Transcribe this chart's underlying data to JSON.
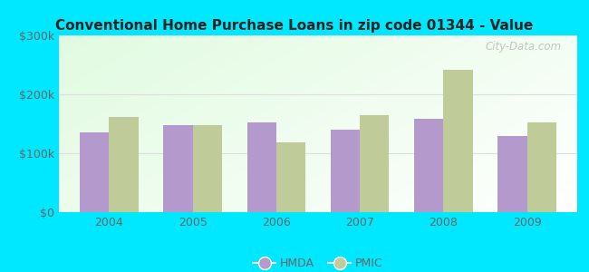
{
  "title": "Conventional Home Purchase Loans in zip code 01344 - Value",
  "years": [
    "2004",
    "2005",
    "2006",
    "2007",
    "2008",
    "2009"
  ],
  "hmda_values": [
    135000,
    148000,
    152000,
    140000,
    158000,
    130000
  ],
  "pmic_values": [
    162000,
    148000,
    118000,
    165000,
    242000,
    152000
  ],
  "hmda_color": "#b399cc",
  "pmic_color": "#bfcc99",
  "ylim": [
    0,
    300000
  ],
  "yticks": [
    0,
    100000,
    200000,
    300000
  ],
  "ytick_labels": [
    "$0",
    "$100k",
    "$200k",
    "$300k"
  ],
  "outer_bg": "#00e8ff",
  "bar_width": 0.35,
  "watermark": "City-Data.com",
  "legend_hmda": "HMDA",
  "legend_pmic": "PMIC",
  "grid_color": "#dddddd",
  "tick_color": "#666666",
  "title_color": "#222222"
}
